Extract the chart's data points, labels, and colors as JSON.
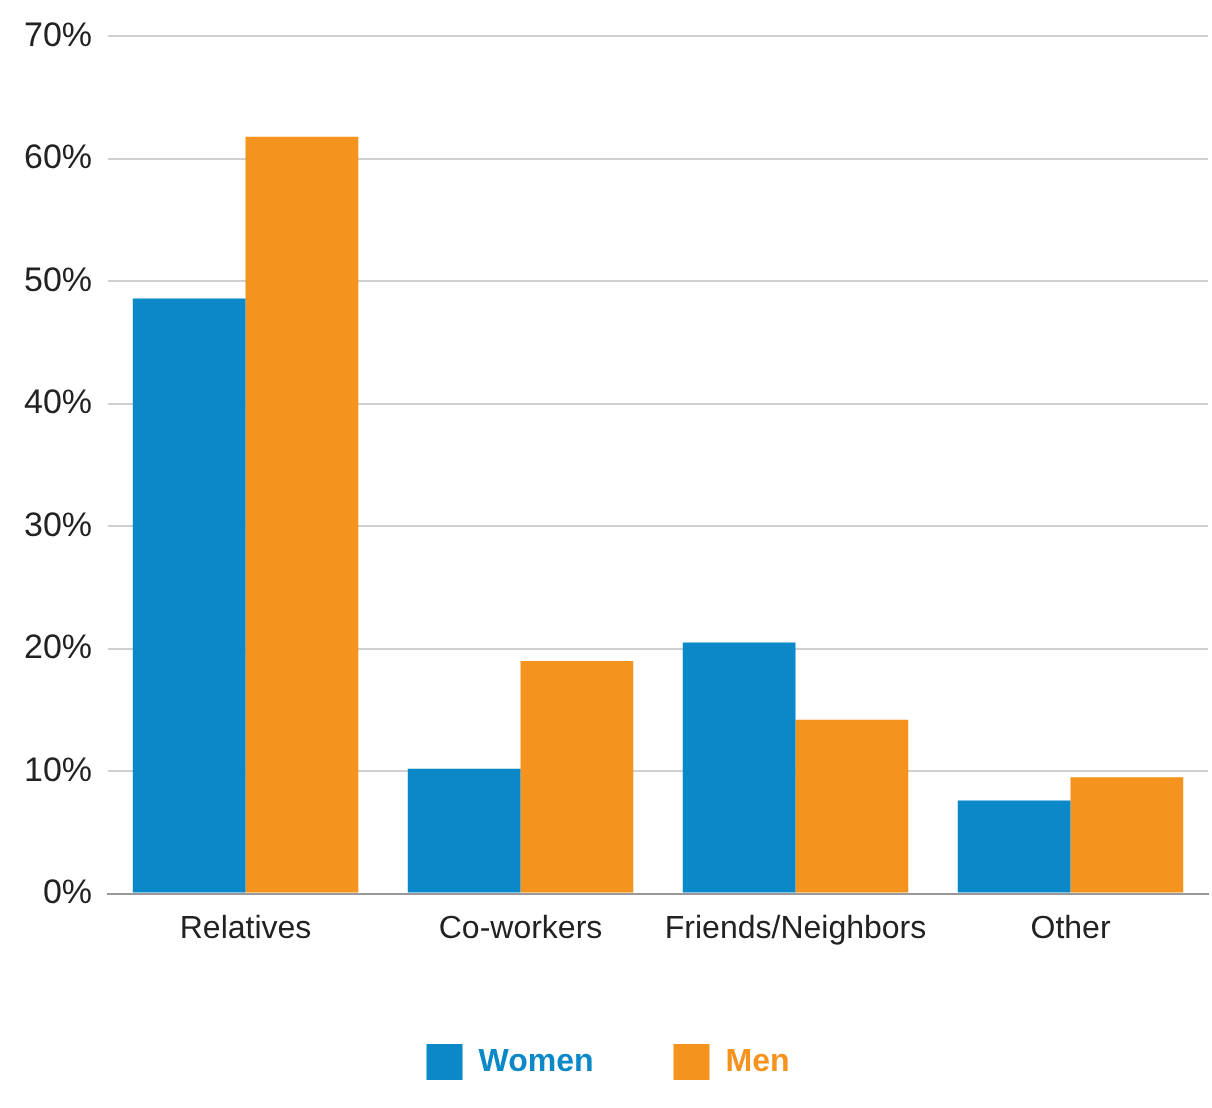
{
  "chart_data": {
    "type": "bar",
    "categories": [
      "Relatives",
      "Co-workers",
      "Friends/Neighbors",
      "Other"
    ],
    "series": [
      {
        "name": "Women",
        "color": "#0a88c8",
        "values": [
          48.6,
          10.2,
          20.5,
          7.6
        ]
      },
      {
        "name": "Men",
        "color": "#f5931f",
        "values": [
          61.8,
          19,
          14.2,
          9.5
        ]
      }
    ],
    "ylim": [
      0,
      70
    ],
    "yticks": [
      {
        "value": 0,
        "label": "0%"
      },
      {
        "value": 10,
        "label": "10%"
      },
      {
        "value": 20,
        "label": "20%"
      },
      {
        "value": 30,
        "label": "30%"
      },
      {
        "value": 40,
        "label": "40%"
      },
      {
        "value": 50,
        "label": "50%"
      },
      {
        "value": 60,
        "label": "60%"
      },
      {
        "value": 70,
        "label": "70%"
      }
    ],
    "grid": "y",
    "legend": "bottom"
  }
}
